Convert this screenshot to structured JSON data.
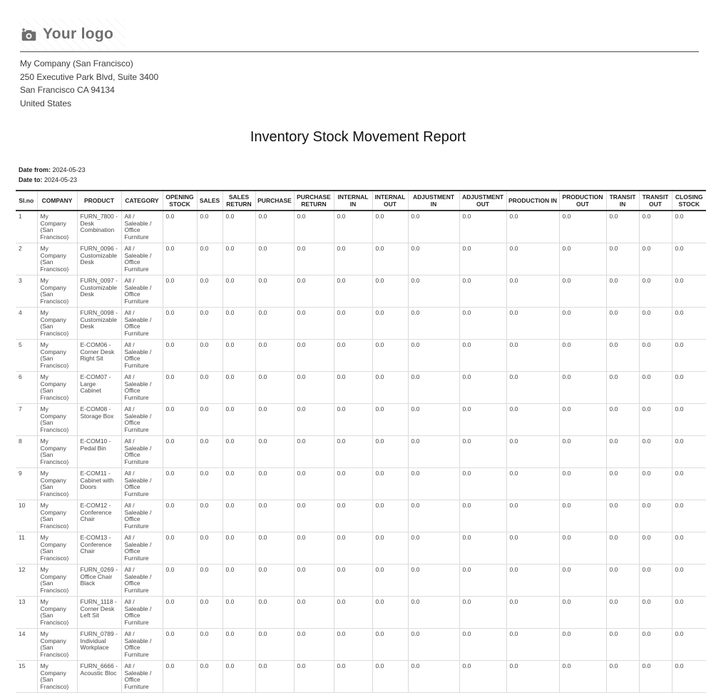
{
  "logo": {
    "text": "Your logo",
    "icon": "camera-icon",
    "text_color": "#6e6e6e"
  },
  "company": {
    "name": "My Company (San Francisco)",
    "address_line1": "250 Executive Park Blvd, Suite 3400",
    "address_line2": "San Francisco CA 94134",
    "address_line3": "United States"
  },
  "report": {
    "title": "Inventory Stock Movement Report",
    "date_from_label": "Date from:",
    "date_from": "2024-05-23",
    "date_to_label": "Date to:",
    "date_to": "2024-05-23"
  },
  "table": {
    "columns": [
      "Sl.no",
      "COMPANY",
      "PRODUCT",
      "CATEGORY",
      "OPENING STOCK",
      "SALES",
      "SALES RETURN",
      "PURCHASE",
      "PURCHASE RETURN",
      "INTERNAL IN",
      "INTERNAL OUT",
      "ADJUSTMENT IN",
      "ADJUSTMENT OUT",
      "PRODUCTION IN",
      "PRODUCTION OUT",
      "TRANSIT IN",
      "TRANSIT OUT",
      "CLOSING STOCK"
    ],
    "rows": [
      {
        "sl": "1",
        "company": "My Company (San Francisco)",
        "product": "FURN_7800 - Desk Combination",
        "category": "All / Saleable / Office Furniture",
        "values": [
          "0.0",
          "0.0",
          "0.0",
          "0.0",
          "0.0",
          "0.0",
          "0.0",
          "0.0",
          "0.0",
          "0.0",
          "0.0",
          "0.0",
          "0.0",
          "0.0"
        ]
      },
      {
        "sl": "2",
        "company": "My Company (San Francisco)",
        "product": "FURN_0096 - Customizable Desk",
        "category": "All / Saleable / Office Furniture",
        "values": [
          "0.0",
          "0.0",
          "0.0",
          "0.0",
          "0.0",
          "0.0",
          "0.0",
          "0.0",
          "0.0",
          "0.0",
          "0.0",
          "0.0",
          "0.0",
          "0.0"
        ]
      },
      {
        "sl": "3",
        "company": "My Company (San Francisco)",
        "product": "FURN_0097 - Customizable Desk",
        "category": "All / Saleable / Office Furniture",
        "values": [
          "0.0",
          "0.0",
          "0.0",
          "0.0",
          "0.0",
          "0.0",
          "0.0",
          "0.0",
          "0.0",
          "0.0",
          "0.0",
          "0.0",
          "0.0",
          "0.0"
        ]
      },
      {
        "sl": "4",
        "company": "My Company (San Francisco)",
        "product": "FURN_0098 - Customizable Desk",
        "category": "All / Saleable / Office Furniture",
        "values": [
          "0.0",
          "0.0",
          "0.0",
          "0.0",
          "0.0",
          "0.0",
          "0.0",
          "0.0",
          "0.0",
          "0.0",
          "0.0",
          "0.0",
          "0.0",
          "0.0"
        ]
      },
      {
        "sl": "5",
        "company": "My Company (San Francisco)",
        "product": "E-COM06 - Corner Desk Right Sit",
        "category": "All / Saleable / Office Furniture",
        "values": [
          "0.0",
          "0.0",
          "0.0",
          "0.0",
          "0.0",
          "0.0",
          "0.0",
          "0.0",
          "0.0",
          "0.0",
          "0.0",
          "0.0",
          "0.0",
          "0.0"
        ]
      },
      {
        "sl": "6",
        "company": "My Company (San Francisco)",
        "product": "E-COM07 - Large Cabinet",
        "category": "All / Saleable / Office Furniture",
        "values": [
          "0.0",
          "0.0",
          "0.0",
          "0.0",
          "0.0",
          "0.0",
          "0.0",
          "0.0",
          "0.0",
          "0.0",
          "0.0",
          "0.0",
          "0.0",
          "0.0"
        ]
      },
      {
        "sl": "7",
        "company": "My Company (San Francisco)",
        "product": "E-COM08 - Storage Box",
        "category": "All / Saleable / Office Furniture",
        "values": [
          "0.0",
          "0.0",
          "0.0",
          "0.0",
          "0.0",
          "0.0",
          "0.0",
          "0.0",
          "0.0",
          "0.0",
          "0.0",
          "0.0",
          "0.0",
          "0.0"
        ]
      },
      {
        "sl": "8",
        "company": "My Company (San Francisco)",
        "product": "E-COM10 - Pedal Bin",
        "category": "All / Saleable / Office Furniture",
        "values": [
          "0.0",
          "0.0",
          "0.0",
          "0.0",
          "0.0",
          "0.0",
          "0.0",
          "0.0",
          "0.0",
          "0.0",
          "0.0",
          "0.0",
          "0.0",
          "0.0"
        ]
      },
      {
        "sl": "9",
        "company": "My Company (San Francisco)",
        "product": "E-COM11 - Cabinet with Doors",
        "category": "All / Saleable / Office Furniture",
        "values": [
          "0.0",
          "0.0",
          "0.0",
          "0.0",
          "0.0",
          "0.0",
          "0.0",
          "0.0",
          "0.0",
          "0.0",
          "0.0",
          "0.0",
          "0.0",
          "0.0"
        ]
      },
      {
        "sl": "10",
        "company": "My Company (San Francisco)",
        "product": "E-COM12 - Conference Chair",
        "category": "All / Saleable / Office Furniture",
        "values": [
          "0.0",
          "0.0",
          "0.0",
          "0.0",
          "0.0",
          "0.0",
          "0.0",
          "0.0",
          "0.0",
          "0.0",
          "0.0",
          "0.0",
          "0.0",
          "0.0"
        ]
      },
      {
        "sl": "11",
        "company": "My Company (San Francisco)",
        "product": "E-COM13 - Conference Chair",
        "category": "All / Saleable / Office Furniture",
        "values": [
          "0.0",
          "0.0",
          "0.0",
          "0.0",
          "0.0",
          "0.0",
          "0.0",
          "0.0",
          "0.0",
          "0.0",
          "0.0",
          "0.0",
          "0.0",
          "0.0"
        ]
      },
      {
        "sl": "12",
        "company": "My Company (San Francisco)",
        "product": "FURN_0269 - Office Chair Black",
        "category": "All / Saleable / Office Furniture",
        "values": [
          "0.0",
          "0.0",
          "0.0",
          "0.0",
          "0.0",
          "0.0",
          "0.0",
          "0.0",
          "0.0",
          "0.0",
          "0.0",
          "0.0",
          "0.0",
          "0.0"
        ]
      },
      {
        "sl": "13",
        "company": "My Company (San Francisco)",
        "product": "FURN_1118 - Corner Desk Left Sit",
        "category": "All / Saleable / Office Furniture",
        "values": [
          "0.0",
          "0.0",
          "0.0",
          "0.0",
          "0.0",
          "0.0",
          "0.0",
          "0.0",
          "0.0",
          "0.0",
          "0.0",
          "0.0",
          "0.0",
          "0.0"
        ]
      },
      {
        "sl": "14",
        "company": "My Company (San Francisco)",
        "product": "FURN_0789 - Individual Workplace",
        "category": "All / Saleable / Office Furniture",
        "values": [
          "0.0",
          "0.0",
          "0.0",
          "0.0",
          "0.0",
          "0.0",
          "0.0",
          "0.0",
          "0.0",
          "0.0",
          "0.0",
          "0.0",
          "0.0",
          "0.0"
        ]
      },
      {
        "sl": "15",
        "company": "My Company (San Francisco)",
        "product": "FURN_6666 - Acoustic Bloc",
        "category": "All / Saleable / Office Furniture",
        "values": [
          "0.0",
          "0.0",
          "0.0",
          "0.0",
          "0.0",
          "0.0",
          "0.0",
          "0.0",
          "0.0",
          "0.0",
          "0.0",
          "0.0",
          "0.0",
          "0.0"
        ]
      }
    ]
  }
}
